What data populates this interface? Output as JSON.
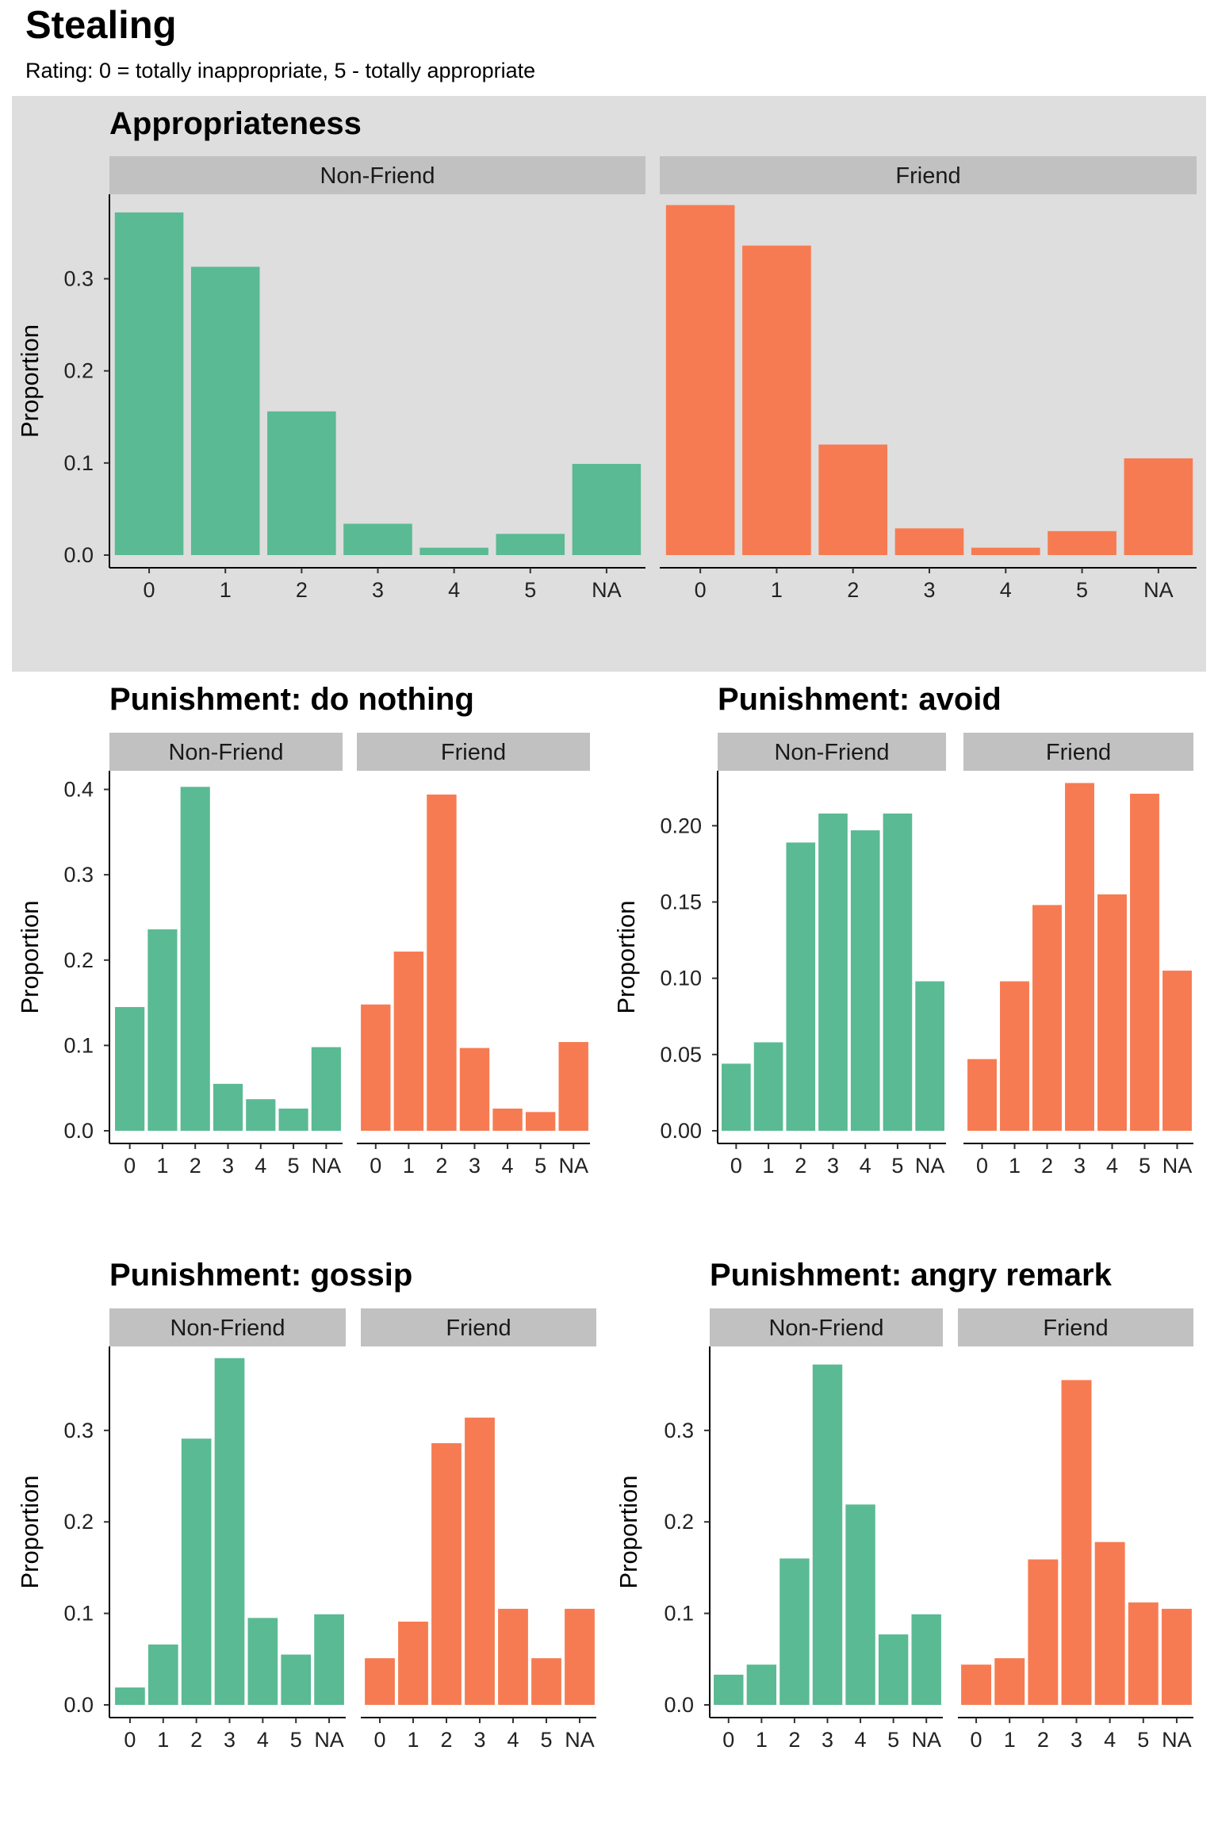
{
  "title": "Stealing",
  "subtitle": "Rating: 0 = totally inappropriate, 5 - totally appropriate",
  "colors": {
    "nonfriend": "#5aba93",
    "friend": "#f77b52",
    "panel_bg": "#dedede",
    "strip_bg": "#c1c1c1"
  },
  "chart_data": [
    {
      "type": "bar",
      "title": "Appropriateness",
      "ylabel": "Proportion",
      "categories": [
        "0",
        "1",
        "2",
        "3",
        "4",
        "5",
        "NA"
      ],
      "ylim": [
        0,
        0.39
      ],
      "yticks": [
        "0.0",
        "0.1",
        "0.2",
        "0.3"
      ],
      "series": [
        {
          "name": "Non-Friend",
          "values": [
            0.372,
            0.313,
            0.156,
            0.034,
            0.008,
            0.023,
            0.099
          ]
        },
        {
          "name": "Friend",
          "values": [
            0.38,
            0.336,
            0.12,
            0.029,
            0.008,
            0.026,
            0.105
          ]
        }
      ]
    },
    {
      "type": "bar",
      "title": "Punishment: do nothing",
      "ylabel": "Proportion",
      "categories": [
        "0",
        "1",
        "2",
        "3",
        "4",
        "5",
        "NA"
      ],
      "ylim": [
        0,
        0.42
      ],
      "yticks": [
        "0.0",
        "0.1",
        "0.2",
        "0.3",
        "0.4"
      ],
      "series": [
        {
          "name": "Non-Friend",
          "values": [
            0.145,
            0.236,
            0.403,
            0.055,
            0.037,
            0.026,
            0.098
          ]
        },
        {
          "name": "Friend",
          "values": [
            0.148,
            0.21,
            0.394,
            0.097,
            0.026,
            0.022,
            0.104
          ]
        }
      ]
    },
    {
      "type": "bar",
      "title": "Punishment: avoid",
      "ylabel": "Proportion",
      "categories": [
        "0",
        "1",
        "2",
        "3",
        "4",
        "5",
        "NA"
      ],
      "ylim": [
        0,
        0.235
      ],
      "yticks": [
        "0.00",
        "0.05",
        "0.10",
        "0.15",
        "0.20"
      ],
      "series": [
        {
          "name": "Non-Friend",
          "values": [
            0.044,
            0.058,
            0.189,
            0.208,
            0.197,
            0.208,
            0.098
          ]
        },
        {
          "name": "Friend",
          "values": [
            0.047,
            0.098,
            0.148,
            0.228,
            0.155,
            0.221,
            0.105
          ]
        }
      ]
    },
    {
      "type": "bar",
      "title": "Punishment: gossip",
      "ylabel": "Proportion",
      "categories": [
        "0",
        "1",
        "2",
        "3",
        "4",
        "5",
        "NA"
      ],
      "ylim": [
        0,
        0.39
      ],
      "yticks": [
        "0.0",
        "0.1",
        "0.2",
        "0.3"
      ],
      "series": [
        {
          "name": "Non-Friend",
          "values": [
            0.019,
            0.066,
            0.291,
            0.379,
            0.095,
            0.055,
            0.099
          ]
        },
        {
          "name": "Friend",
          "values": [
            0.051,
            0.091,
            0.286,
            0.314,
            0.105,
            0.051,
            0.105
          ]
        }
      ]
    },
    {
      "type": "bar",
      "title": "Punishment: angry remark",
      "ylabel": "Proportion",
      "categories": [
        "0",
        "1",
        "2",
        "3",
        "4",
        "5",
        "NA"
      ],
      "ylim": [
        0,
        0.39
      ],
      "yticks": [
        "0.0",
        "0.1",
        "0.2",
        "0.3"
      ],
      "series": [
        {
          "name": "Non-Friend",
          "values": [
            0.033,
            0.044,
            0.16,
            0.372,
            0.219,
            0.077,
            0.099
          ]
        },
        {
          "name": "Friend",
          "values": [
            0.044,
            0.051,
            0.159,
            0.355,
            0.178,
            0.112,
            0.105
          ]
        }
      ]
    }
  ]
}
